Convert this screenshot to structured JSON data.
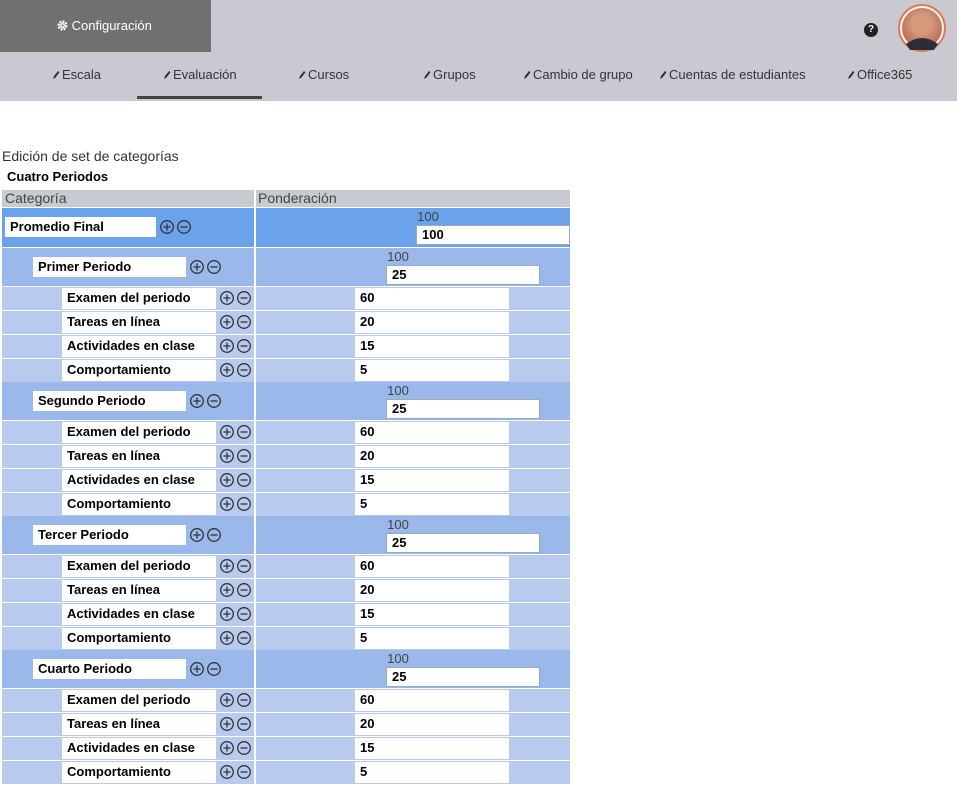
{
  "header": {
    "config_button": "Configuración",
    "help": "?"
  },
  "nav": [
    "Escala",
    "Evaluación",
    "Cursos",
    "Grupos",
    "Cambio de grupo",
    "Cuentas de estudiantes",
    "Office365"
  ],
  "page": {
    "title": "Edición de set de categorías",
    "set_name": "Cuatro Periodos"
  },
  "table": {
    "columns": [
      "Categoría",
      "Ponderación"
    ],
    "root": {
      "name": "Promedio Final",
      "total": 100,
      "weight": 100,
      "children": [
        {
          "name": "Primer Periodo",
          "total": 100,
          "weight": 25,
          "children": [
            {
              "name": "Examen del periodo",
              "weight": 60
            },
            {
              "name": "Tareas en línea",
              "weight": 20
            },
            {
              "name": "Actividades en clase",
              "weight": 15
            },
            {
              "name": "Comportamiento",
              "weight": 5
            }
          ]
        },
        {
          "name": "Segundo Periodo",
          "total": 100,
          "weight": 25,
          "children": [
            {
              "name": "Examen del periodo",
              "weight": 60
            },
            {
              "name": "Tareas en línea",
              "weight": 20
            },
            {
              "name": "Actividades en clase",
              "weight": 15
            },
            {
              "name": "Comportamiento",
              "weight": 5
            }
          ]
        },
        {
          "name": "Tercer Periodo",
          "total": 100,
          "weight": 25,
          "children": [
            {
              "name": "Examen del periodo",
              "weight": 60
            },
            {
              "name": "Tareas en línea",
              "weight": 20
            },
            {
              "name": "Actividades en clase",
              "weight": 15
            },
            {
              "name": "Comportamiento",
              "weight": 5
            }
          ]
        },
        {
          "name": "Cuarto Periodo",
          "total": 100,
          "weight": 25,
          "children": [
            {
              "name": "Examen del periodo",
              "weight": 60
            },
            {
              "name": "Tareas en línea",
              "weight": 20
            },
            {
              "name": "Actividades en clase",
              "weight": 15
            },
            {
              "name": "Comportamiento",
              "weight": 5
            }
          ]
        }
      ]
    }
  }
}
